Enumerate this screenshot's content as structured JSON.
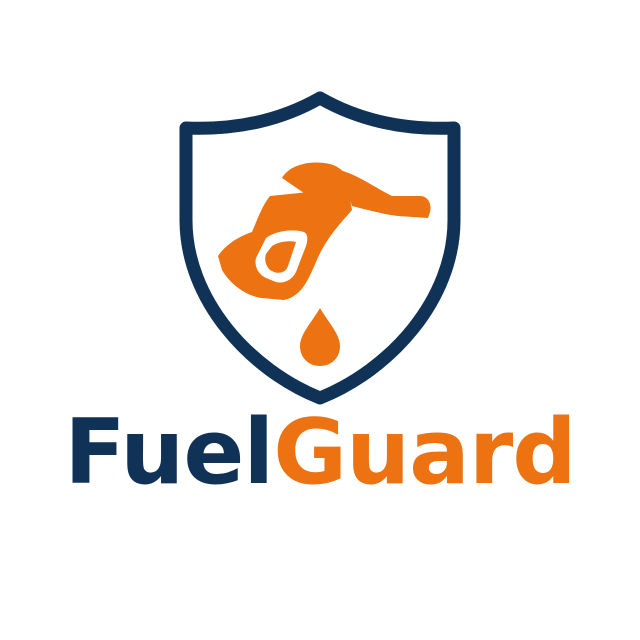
{
  "brand": {
    "word_primary": "Fuel",
    "word_secondary": "Guard",
    "colors": {
      "navy": "#0f3256",
      "orange": "#ec7212",
      "background": "#ffffff"
    }
  },
  "emblem": {
    "icons": [
      "shield-icon",
      "fuel-nozzle-icon",
      "fuel-drop-icon"
    ]
  }
}
